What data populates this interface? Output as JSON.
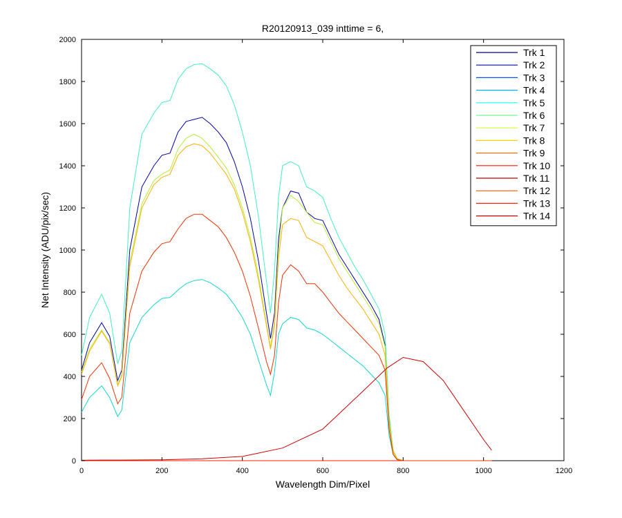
{
  "chart_data": {
    "type": "line",
    "title": "R20120913_039 inttime = 6,",
    "xlabel": "Wavelength Dim/Pixel",
    "ylabel": "Net Intensity (ADU/pix/sec)",
    "xlim": [
      0,
      1200
    ],
    "ylim": [
      0,
      2000
    ],
    "xticks": [
      0,
      200,
      400,
      600,
      800,
      1000,
      1200
    ],
    "yticks": [
      0,
      200,
      400,
      600,
      800,
      1000,
      1200,
      1400,
      1600,
      1800,
      2000
    ],
    "grid": false,
    "legend_position": "top-right",
    "series": [
      {
        "name": "Trk 1",
        "color": "#00008f",
        "x": [
          0,
          1000
        ],
        "y": [
          0,
          0
        ]
      },
      {
        "name": "Trk 2",
        "color": "#0000ef",
        "x": [
          0,
          1000
        ],
        "y": [
          0,
          0
        ]
      },
      {
        "name": "Trk 3",
        "color": "#0050ff",
        "x": [
          0,
          1000
        ],
        "y": [
          0,
          0
        ]
      },
      {
        "name": "Trk 4",
        "color": "#00afff",
        "x": [
          0,
          1000
        ],
        "y": [
          0,
          0
        ]
      },
      {
        "name": "Trk 5",
        "color": "#10ffef",
        "x": [
          0,
          1000
        ],
        "y": [
          0,
          0
        ]
      },
      {
        "name": "Trk 6",
        "color": "#70ff8f",
        "x": [
          0,
          1000
        ],
        "y": [
          0,
          0
        ]
      },
      {
        "name": "Trk 7",
        "color": "#cfff30",
        "x": [
          0,
          1000
        ],
        "y": [
          0,
          0
        ]
      },
      {
        "name": "Trk 8",
        "color": "#ffcf00",
        "x": [
          0,
          1000
        ],
        "y": [
          0,
          0
        ]
      },
      {
        "name": "Trk 9",
        "color": "#ff7000",
        "x": [
          0,
          1000
        ],
        "y": [
          0,
          0
        ]
      },
      {
        "name": "Trk 10",
        "color": "#ff1000",
        "x": [
          0,
          1000
        ],
        "y": [
          0,
          0
        ]
      },
      {
        "name": "Trk 11",
        "color": "#c00000",
        "x": [
          0,
          1000
        ],
        "y": [
          0,
          0
        ]
      },
      {
        "name": "Trk 12",
        "color": "#ff5000",
        "x": [
          0,
          1000
        ],
        "y": [
          0,
          0
        ]
      },
      {
        "name": "Trk 13",
        "color": "#ff2000",
        "x": [
          0,
          1000
        ],
        "y": [
          0,
          0
        ]
      },
      {
        "name": "Trk 14",
        "color": "#cc0000",
        "x": [
          0,
          50,
          100,
          200,
          300,
          400,
          500,
          600,
          700,
          760,
          800,
          850,
          900,
          950,
          1000,
          1020
        ],
        "y": [
          2,
          3,
          3,
          4,
          9,
          20,
          60,
          150,
          330,
          440,
          490,
          470,
          380,
          240,
          100,
          50
        ]
      }
    ],
    "display_curves": [
      {
        "name": "Trk 1",
        "color": "#0000aa",
        "x": [
          0,
          20,
          50,
          70,
          90,
          100,
          120,
          150,
          180,
          200,
          220,
          240,
          260,
          280,
          300,
          320,
          340,
          360,
          380,
          400,
          420,
          440,
          460,
          470,
          480,
          490,
          500,
          520,
          540,
          560,
          580,
          600,
          620,
          640,
          660,
          680,
          700,
          720,
          740,
          755,
          765,
          775,
          785,
          800,
          1020
        ],
        "y": [
          430,
          560,
          655,
          590,
          380,
          430,
          1000,
          1300,
          1400,
          1450,
          1460,
          1560,
          1610,
          1620,
          1630,
          1600,
          1560,
          1510,
          1420,
          1300,
          1150,
          950,
          700,
          580,
          700,
          1050,
          1200,
          1280,
          1270,
          1180,
          1150,
          1140,
          1060,
          980,
          920,
          860,
          800,
          740,
          670,
          550,
          200,
          50,
          10,
          0,
          0
        ]
      },
      {
        "name": "Trk 5",
        "color": "#10d8d0",
        "x": [
          0,
          20,
          50,
          70,
          90,
          100,
          120,
          150,
          180,
          200,
          220,
          240,
          260,
          280,
          300,
          320,
          340,
          360,
          380,
          400,
          420,
          440,
          460,
          470,
          480,
          490,
          500,
          520,
          540,
          560,
          580,
          600,
          620,
          640,
          660,
          680,
          700,
          720,
          740,
          755,
          765,
          775,
          785,
          800,
          1020
        ],
        "y": [
          230,
          300,
          355,
          300,
          210,
          240,
          560,
          680,
          740,
          770,
          775,
          810,
          840,
          855,
          860,
          845,
          820,
          790,
          740,
          680,
          600,
          480,
          360,
          310,
          420,
          600,
          650,
          680,
          670,
          630,
          620,
          600,
          570,
          540,
          510,
          480,
          450,
          410,
          370,
          310,
          120,
          30,
          5,
          0,
          0
        ]
      },
      {
        "name": "Trk 6",
        "color": "#40f0c0",
        "x": [
          0,
          20,
          50,
          70,
          90,
          100,
          120,
          150,
          180,
          200,
          220,
          240,
          260,
          280,
          300,
          320,
          340,
          360,
          380,
          400,
          420,
          440,
          460,
          470,
          480,
          490,
          500,
          520,
          540,
          560,
          580,
          600,
          620,
          640,
          660,
          680,
          700,
          720,
          740,
          755,
          765,
          775,
          785,
          800,
          1020
        ],
        "y": [
          500,
          680,
          790,
          700,
          460,
          520,
          1200,
          1550,
          1650,
          1700,
          1710,
          1810,
          1860,
          1880,
          1885,
          1860,
          1830,
          1780,
          1690,
          1560,
          1400,
          1160,
          850,
          700,
          900,
          1250,
          1400,
          1420,
          1400,
          1300,
          1280,
          1250,
          1150,
          1060,
          990,
          920,
          860,
          790,
          720,
          600,
          220,
          50,
          10,
          0,
          0
        ]
      },
      {
        "name": "Trk 8",
        "color": "#b8ee30",
        "x": [
          0,
          20,
          50,
          70,
          90,
          100,
          120,
          150,
          180,
          200,
          220,
          240,
          260,
          280,
          300,
          320,
          340,
          360,
          380,
          400,
          420,
          440,
          460,
          470,
          480,
          490,
          500,
          520,
          540,
          560,
          580,
          600,
          620,
          640,
          660,
          680,
          700,
          720,
          740,
          755,
          765,
          775,
          785,
          800,
          1020
        ],
        "y": [
          420,
          530,
          620,
          560,
          360,
          410,
          940,
          1220,
          1330,
          1360,
          1380,
          1480,
          1530,
          1550,
          1530,
          1490,
          1440,
          1390,
          1310,
          1200,
          1060,
          880,
          650,
          540,
          660,
          1000,
          1200,
          1260,
          1230,
          1180,
          1130,
          1120,
          1040,
          960,
          900,
          840,
          780,
          720,
          650,
          540,
          190,
          50,
          10,
          0,
          0
        ]
      },
      {
        "name": "Trk 10",
        "color": "#ffb000",
        "x": [
          0,
          20,
          50,
          70,
          90,
          100,
          120,
          150,
          180,
          200,
          220,
          240,
          260,
          280,
          300,
          320,
          340,
          360,
          380,
          400,
          420,
          440,
          460,
          470,
          480,
          490,
          500,
          520,
          540,
          560,
          580,
          600,
          620,
          640,
          660,
          680,
          700,
          720,
          740,
          755,
          765,
          775,
          785,
          800,
          1020
        ],
        "y": [
          410,
          520,
          615,
          555,
          355,
          400,
          920,
          1200,
          1310,
          1345,
          1360,
          1450,
          1490,
          1505,
          1495,
          1460,
          1410,
          1360,
          1290,
          1180,
          1040,
          860,
          640,
          530,
          640,
          960,
          1120,
          1150,
          1140,
          1060,
          1040,
          1020,
          950,
          880,
          820,
          770,
          720,
          660,
          600,
          500,
          180,
          40,
          8,
          0,
          0
        ]
      },
      {
        "name": "Trk 13",
        "color": "#f03000",
        "x": [
          0,
          20,
          50,
          70,
          90,
          100,
          120,
          150,
          180,
          200,
          220,
          240,
          260,
          280,
          300,
          320,
          340,
          360,
          380,
          400,
          420,
          440,
          460,
          470,
          480,
          490,
          500,
          520,
          540,
          560,
          580,
          600,
          620,
          640,
          660,
          680,
          700,
          720,
          740,
          755,
          765,
          775,
          785,
          800,
          1020
        ],
        "y": [
          290,
          400,
          465,
          390,
          270,
          300,
          700,
          900,
          990,
          1030,
          1040,
          1100,
          1150,
          1170,
          1170,
          1140,
          1110,
          1060,
          990,
          900,
          780,
          630,
          470,
          410,
          500,
          750,
          880,
          930,
          900,
          840,
          840,
          800,
          750,
          700,
          660,
          620,
          580,
          540,
          500,
          430,
          150,
          30,
          5,
          0,
          0
        ]
      }
    ]
  }
}
